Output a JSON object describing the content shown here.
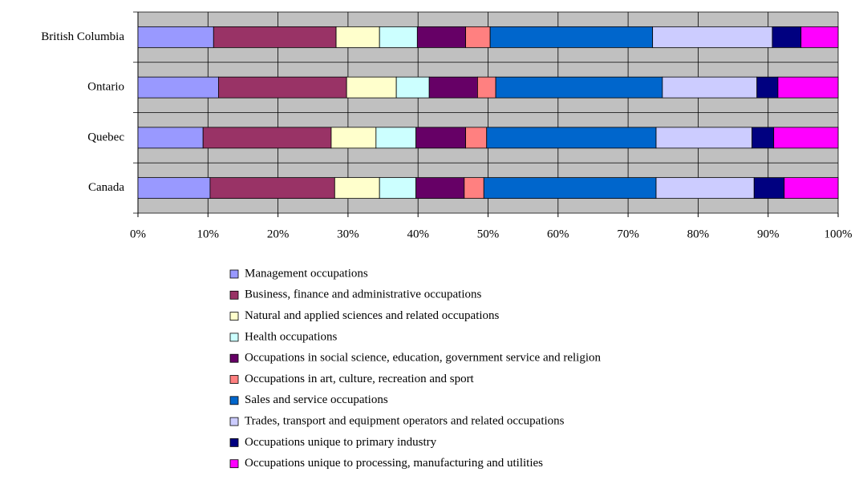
{
  "chart_data": {
    "type": "stacked-barh",
    "categories": [
      "British Columbia",
      "Ontario",
      "Quebec",
      "Canada"
    ],
    "series": [
      {
        "name": "Management occupations",
        "color": "#9999ff",
        "values": [
          10.8,
          11.5,
          9.3,
          10.3
        ]
      },
      {
        "name": "Business, finance and administrative occupations",
        "color": "#993366",
        "values": [
          17.5,
          18.3,
          18.3,
          17.8
        ]
      },
      {
        "name": "Natural and applied sciences and related occupations",
        "color": "#ffffcc",
        "values": [
          6.2,
          7.1,
          6.4,
          6.4
        ]
      },
      {
        "name": "Health occupations",
        "color": "#ccffff",
        "values": [
          5.4,
          4.7,
          5.7,
          5.2
        ]
      },
      {
        "name": "Occupations in social science, education, government service and religion",
        "color": "#660066",
        "values": [
          6.9,
          6.9,
          7.1,
          6.9
        ]
      },
      {
        "name": "Occupations in art, culture, recreation and sport",
        "color": "#ff8080",
        "values": [
          3.5,
          2.6,
          3.0,
          2.8
        ]
      },
      {
        "name": "Sales and service occupations",
        "color": "#0066cc",
        "values": [
          23.2,
          23.8,
          24.2,
          24.6
        ]
      },
      {
        "name": "Trades, transport and equipment operators and related occupations",
        "color": "#ccccff",
        "values": [
          17.1,
          13.5,
          13.7,
          14.0
        ]
      },
      {
        "name": "Occupations unique to primary industry",
        "color": "#000080",
        "values": [
          4.1,
          3.0,
          3.1,
          4.3
        ]
      },
      {
        "name": "Occupations unique to processing, manufacturing and utilities",
        "color": "#ff00ff",
        "values": [
          5.3,
          8.6,
          9.2,
          7.7
        ]
      }
    ],
    "xlim": [
      0,
      100
    ],
    "xticks": [
      {
        "value": 0,
        "label": "0%"
      },
      {
        "value": 10,
        "label": "10%"
      },
      {
        "value": 20,
        "label": "20%"
      },
      {
        "value": 30,
        "label": "30%"
      },
      {
        "value": 40,
        "label": "40%"
      },
      {
        "value": 50,
        "label": "50%"
      },
      {
        "value": 60,
        "label": "60%"
      },
      {
        "value": 70,
        "label": "70%"
      },
      {
        "value": 80,
        "label": "80%"
      },
      {
        "value": 90,
        "label": "90%"
      },
      {
        "value": 100,
        "label": "100%"
      }
    ],
    "grid": true,
    "legend": "bottom"
  }
}
